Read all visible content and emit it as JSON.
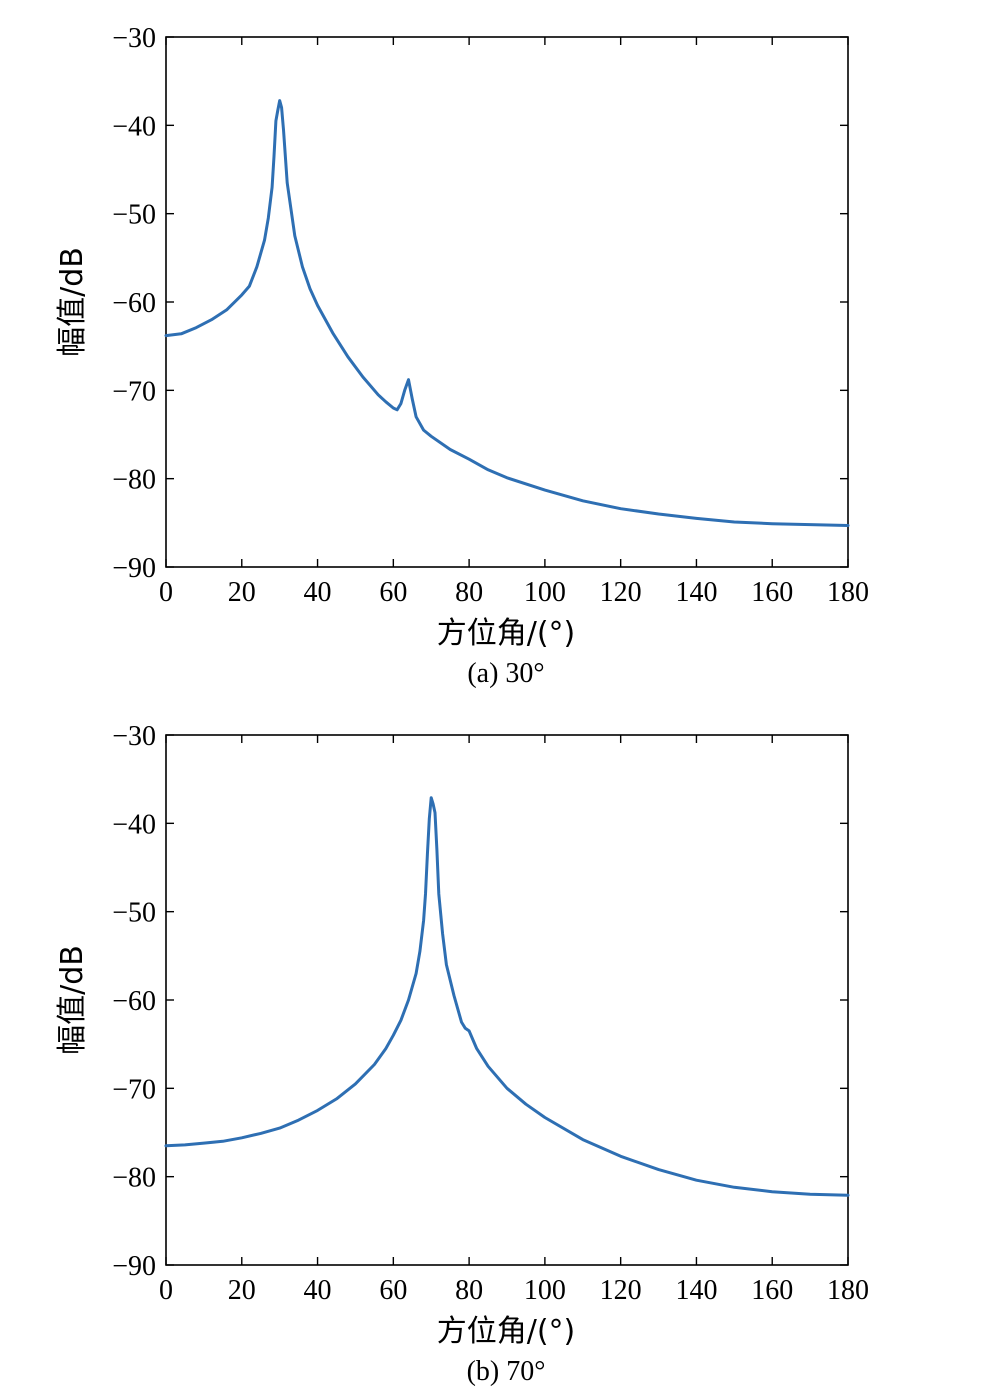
{
  "chart_data": [
    {
      "type": "line",
      "caption": "(a) 30°",
      "xlabel": "方位角/(°)",
      "ylabel": "幅值/dB",
      "xlim": [
        0,
        180
      ],
      "ylim": [
        -90,
        -30
      ],
      "xticks": [
        0,
        20,
        40,
        60,
        80,
        100,
        120,
        140,
        160,
        180
      ],
      "yticks": [
        -30,
        -40,
        -50,
        -60,
        -70,
        -80,
        -90
      ],
      "xtick_labels": [
        "0",
        "20",
        "40",
        "60",
        "80",
        "100",
        "120",
        "140",
        "160",
        "180"
      ],
      "ytick_labels": [
        "−30",
        "−40",
        "−50",
        "−60",
        "−70",
        "−80",
        "−90"
      ],
      "grid": false,
      "series": [
        {
          "color": "#2e6fb3",
          "x": [
            0,
            4,
            8,
            12,
            16,
            20,
            22,
            24,
            26,
            27,
            28,
            28.5,
            29,
            29.5,
            30,
            30.5,
            31,
            32,
            33,
            34,
            36,
            38,
            40,
            44,
            48,
            52,
            56,
            58,
            60,
            61,
            62,
            63,
            64,
            65,
            66,
            68,
            70,
            75,
            80,
            85,
            90,
            100,
            110,
            120,
            130,
            140,
            150,
            160,
            170,
            180
          ],
          "y": [
            -63.8,
            -63.6,
            -62.9,
            -62.0,
            -60.9,
            -59.2,
            -58.2,
            -56.0,
            -53.0,
            -50.5,
            -47.0,
            -43.5,
            -39.5,
            -38.3,
            -37.2,
            -38.0,
            -40.5,
            -46.5,
            -49.5,
            -52.5,
            -56.0,
            -58.5,
            -60.4,
            -63.5,
            -66.2,
            -68.5,
            -70.5,
            -71.3,
            -72.0,
            -72.2,
            -71.5,
            -70.0,
            -68.8,
            -71.0,
            -73.0,
            -74.5,
            -75.2,
            -76.7,
            -77.8,
            -79.0,
            -79.9,
            -81.3,
            -82.5,
            -83.4,
            -84.0,
            -84.5,
            -84.9,
            -85.1,
            -85.2,
            -85.3
          ]
        }
      ]
    },
    {
      "type": "line",
      "caption": "(b) 70°",
      "xlabel": "方位角/(°)",
      "ylabel": "幅值/dB",
      "xlim": [
        0,
        180
      ],
      "ylim": [
        -90,
        -30
      ],
      "xticks": [
        0,
        20,
        40,
        60,
        80,
        100,
        120,
        140,
        160,
        180
      ],
      "yticks": [
        -30,
        -40,
        -50,
        -60,
        -70,
        -80,
        -90
      ],
      "xtick_labels": [
        "0",
        "20",
        "40",
        "60",
        "80",
        "100",
        "120",
        "140",
        "160",
        "180"
      ],
      "ytick_labels": [
        "−30",
        "−40",
        "−50",
        "−60",
        "−70",
        "−80",
        "−90"
      ],
      "grid": false,
      "series": [
        {
          "color": "#2e6fb3",
          "x": [
            0,
            5,
            10,
            15,
            20,
            25,
            30,
            35,
            40,
            45,
            50,
            55,
            58,
            60,
            62,
            64,
            66,
            67,
            68,
            68.5,
            69,
            69.5,
            70,
            70.5,
            71,
            71.5,
            72,
            73,
            74,
            76,
            78,
            79,
            80,
            82,
            85,
            90,
            95,
            100,
            110,
            120,
            130,
            140,
            150,
            160,
            170,
            180
          ],
          "y": [
            -76.5,
            -76.4,
            -76.2,
            -76.0,
            -75.6,
            -75.1,
            -74.5,
            -73.6,
            -72.5,
            -71.2,
            -69.5,
            -67.3,
            -65.5,
            -64.0,
            -62.3,
            -60.0,
            -57.0,
            -54.5,
            -51.0,
            -48.0,
            -43.5,
            -39.5,
            -37.1,
            -37.8,
            -38.8,
            -43.0,
            -48.0,
            -52.5,
            -56.0,
            -59.5,
            -62.5,
            -63.2,
            -63.5,
            -65.5,
            -67.5,
            -70.0,
            -71.8,
            -73.3,
            -75.8,
            -77.7,
            -79.2,
            -80.4,
            -81.2,
            -81.7,
            -82.0,
            -82.1
          ]
        }
      ]
    }
  ]
}
